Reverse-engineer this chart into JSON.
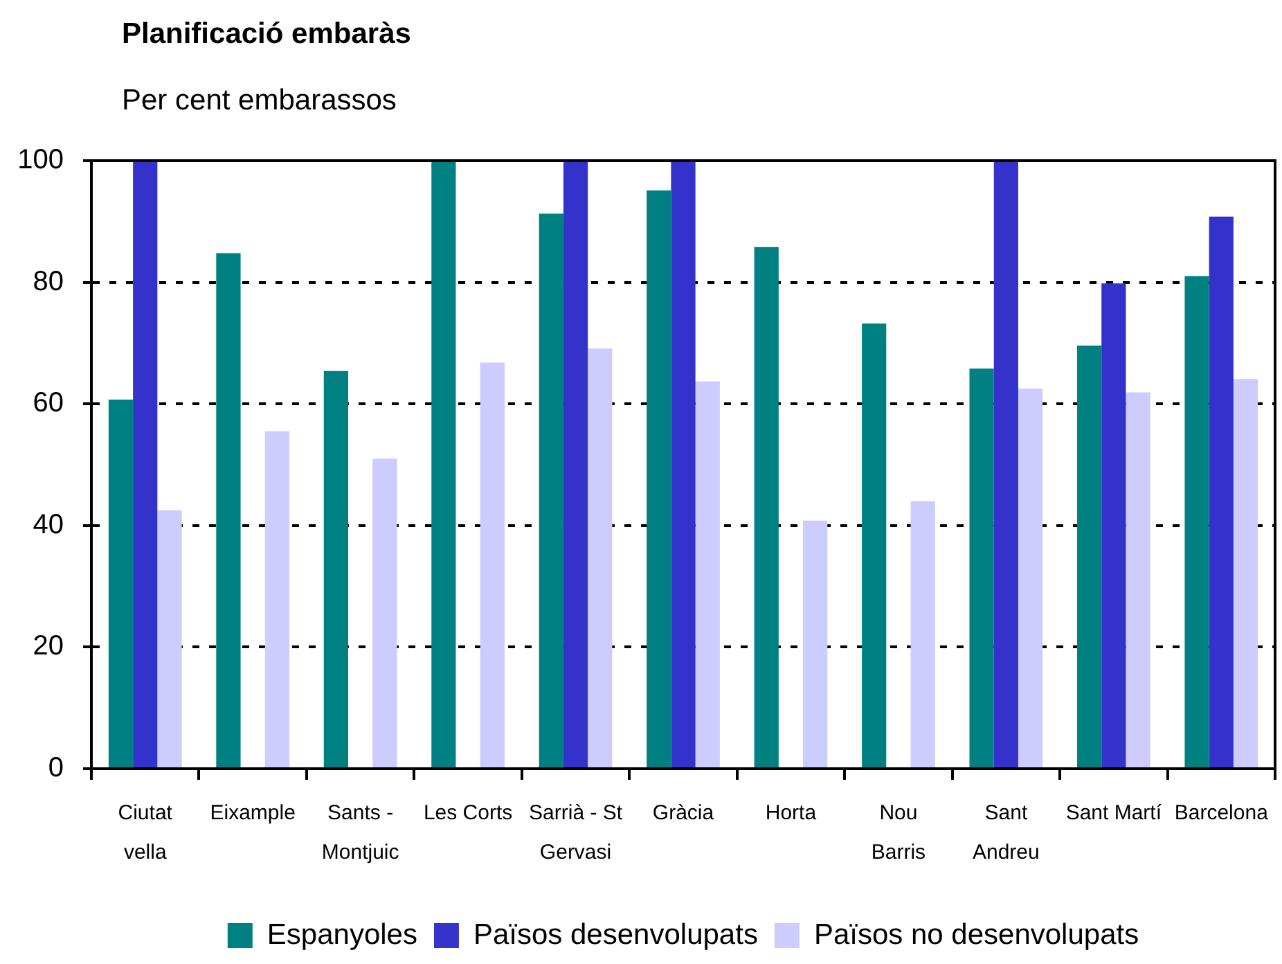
{
  "chart_data": {
    "type": "bar",
    "title": "Planificació embaràs",
    "subtitle": "Per cent embarassos",
    "categories": [
      "Ciutat vella",
      "Eixample",
      "Sants - Montjuic",
      "Les Corts",
      "Sarrià - St Gervasi",
      "Gràcia",
      "Horta",
      "Nou Barris",
      "Sant Andreu",
      "Sant Martí",
      "Barcelona"
    ],
    "series": [
      {
        "name": "Espanyoles",
        "color": "#008080",
        "values": [
          60.7,
          84.8,
          65.4,
          100,
          91.3,
          95.1,
          85.8,
          73.2,
          65.8,
          69.6,
          81.0
        ]
      },
      {
        "name": "Països desenvolupats",
        "color": "#3333cc",
        "values": [
          100,
          null,
          null,
          null,
          100,
          100,
          null,
          null,
          100,
          79.8,
          90.8
        ]
      },
      {
        "name": "Països no desenvolupats",
        "color": "#ccccff",
        "values": [
          42.5,
          55.5,
          51.0,
          66.8,
          69.1,
          63.7,
          40.8,
          44.0,
          62.5,
          61.9,
          64.1
        ]
      }
    ],
    "ylim": [
      0,
      100
    ],
    "yticks": [
      0,
      20,
      40,
      60,
      80,
      100
    ],
    "grid": "y",
    "legend": "bottom"
  }
}
